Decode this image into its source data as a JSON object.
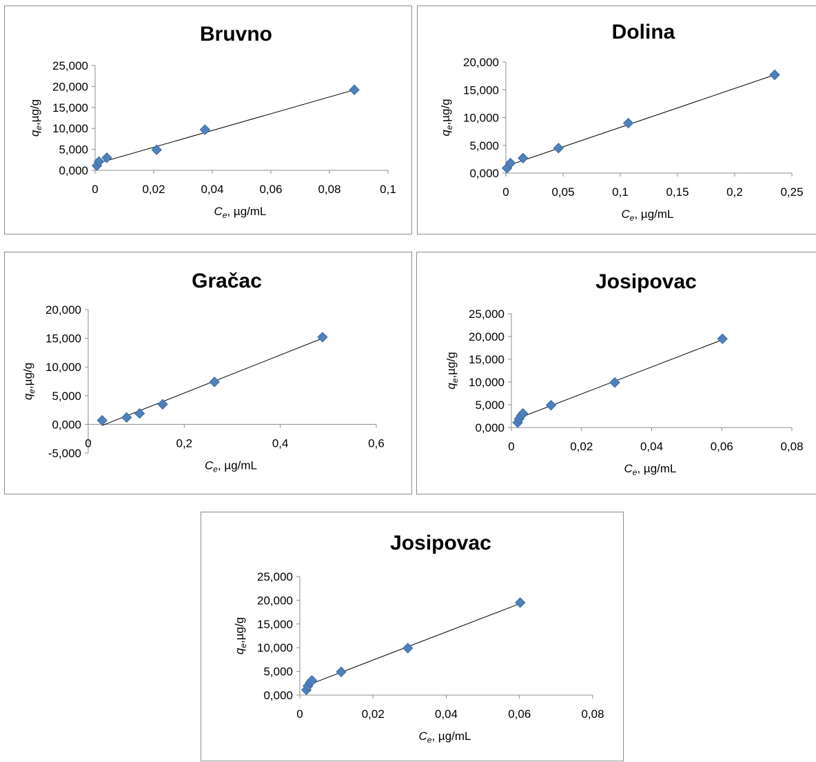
{
  "colors": {
    "marker": "#4f81bd",
    "marker_stroke": "#3a6ba5",
    "trendline": "#000000",
    "axis": "#8c8c8c"
  },
  "chart_data": [
    {
      "type": "scatter",
      "title": "Bruvno",
      "xlabel": {
        "symbol": "C",
        "sub": "e",
        "rest": ", µg/mL"
      },
      "ylabel": {
        "symbol": "q",
        "sub": "e",
        "rest": ",µg/g"
      },
      "xlim": [
        0,
        0.1
      ],
      "ylim": [
        0,
        25000
      ],
      "xticks": [
        0,
        0.02,
        0.04,
        0.06,
        0.08,
        0.1
      ],
      "xtick_labels": [
        "0",
        "0,02",
        "0,04",
        "0,06",
        "0,08",
        "0,1"
      ],
      "yticks": [
        0,
        5000,
        10000,
        15000,
        20000,
        25000
      ],
      "ytick_labels": [
        "0,000",
        "5,000",
        "10,000",
        "15,000",
        "20,000",
        "25,000"
      ],
      "grid": false,
      "points": [
        [
          0.0006,
          1100
        ],
        [
          0.0013,
          2100
        ],
        [
          0.004,
          3000
        ],
        [
          0.021,
          4900
        ],
        [
          0.0375,
          9700
        ],
        [
          0.0885,
          19200
        ]
      ],
      "trendline": [
        [
          0.001,
          1700
        ],
        [
          0.0885,
          19200
        ]
      ]
    },
    {
      "type": "scatter",
      "title": "Dolina",
      "xlabel": {
        "symbol": "C",
        "sub": "e",
        "rest": ", µg/mL"
      },
      "ylabel": {
        "symbol": "q",
        "sub": "e",
        "rest": ",µg/g"
      },
      "xlim": [
        0,
        0.25
      ],
      "ylim": [
        0,
        20000
      ],
      "xticks": [
        0,
        0.05,
        0.1,
        0.15,
        0.2,
        0.25
      ],
      "xtick_labels": [
        "0",
        "0,05",
        "0,1",
        "0,15",
        "0,2",
        "0,25"
      ],
      "yticks": [
        0,
        5000,
        10000,
        15000,
        20000
      ],
      "ytick_labels": [
        "0,000",
        "5,000",
        "10,000",
        "15,000",
        "20,000"
      ],
      "grid": false,
      "points": [
        [
          0.001,
          900
        ],
        [
          0.004,
          1800
        ],
        [
          0.015,
          2700
        ],
        [
          0.046,
          4500
        ],
        [
          0.107,
          9000
        ],
        [
          0.235,
          17700
        ]
      ],
      "trendline": [
        [
          0.001,
          1300
        ],
        [
          0.235,
          17700
        ]
      ]
    },
    {
      "type": "scatter",
      "title": "Gračac",
      "xlabel": {
        "symbol": "C",
        "sub": "e",
        "rest": ", µg/mL"
      },
      "ylabel": {
        "symbol": "q",
        "sub": "e",
        "rest": ",µg/g"
      },
      "xlim": [
        0,
        0.6
      ],
      "ylim": [
        -5000,
        20000
      ],
      "xticks": [
        0,
        0.2,
        0.4,
        0.6
      ],
      "xtick_labels": [
        "0",
        "0,2",
        "0,4",
        "0,6"
      ],
      "yticks": [
        -5000,
        0,
        5000,
        10000,
        15000,
        20000
      ],
      "ytick_labels": [
        "-5,000",
        "0,000",
        "5,000",
        "10,000",
        "15,000",
        "20,000"
      ],
      "grid": false,
      "points": [
        [
          0.029,
          700
        ],
        [
          0.08,
          1200
        ],
        [
          0.107,
          1900
        ],
        [
          0.155,
          3500
        ],
        [
          0.263,
          7400
        ],
        [
          0.488,
          15200
        ]
      ],
      "trendline": [
        [
          0.029,
          -200
        ],
        [
          0.488,
          15000
        ]
      ]
    },
    {
      "type": "scatter",
      "title": "Josipovac",
      "xlabel": {
        "symbol": "C",
        "sub": "e",
        "rest": ", µg/mL"
      },
      "ylabel": {
        "symbol": "q",
        "sub": "e",
        "rest": ",µg/g"
      },
      "xlim": [
        0,
        0.08
      ],
      "ylim": [
        0,
        25000
      ],
      "xticks": [
        0,
        0.02,
        0.04,
        0.06,
        0.08
      ],
      "xtick_labels": [
        "0",
        "0,02",
        "0,04",
        "0,06",
        "0,08"
      ],
      "yticks": [
        0,
        5000,
        10000,
        15000,
        20000,
        25000
      ],
      "ytick_labels": [
        "0,000",
        "5,000",
        "10,000",
        "15,000",
        "20,000",
        "25,000"
      ],
      "grid": false,
      "points": [
        [
          0.0018,
          1100
        ],
        [
          0.0022,
          1900
        ],
        [
          0.0028,
          2600
        ],
        [
          0.0033,
          3100
        ],
        [
          0.0113,
          4900
        ],
        [
          0.0295,
          9900
        ],
        [
          0.0602,
          19500
        ]
      ],
      "trendline": [
        [
          0.0015,
          1900
        ],
        [
          0.0602,
          19300
        ]
      ]
    },
    {
      "type": "scatter",
      "title": "Josipovac",
      "xlabel": {
        "symbol": "C",
        "sub": "e",
        "rest": ", µg/mL"
      },
      "ylabel": {
        "symbol": "q",
        "sub": "e",
        "rest": ",µg/g"
      },
      "xlim": [
        0,
        0.08
      ],
      "ylim": [
        0,
        25000
      ],
      "xticks": [
        0,
        0.02,
        0.04,
        0.06,
        0.08
      ],
      "xtick_labels": [
        "0",
        "0,02",
        "0,04",
        "0,06",
        "0,08"
      ],
      "yticks": [
        0,
        5000,
        10000,
        15000,
        20000,
        25000
      ],
      "ytick_labels": [
        "0,000",
        "5,000",
        "10,000",
        "15,000",
        "20,000",
        "25,000"
      ],
      "grid": false,
      "points": [
        [
          0.0018,
          1100
        ],
        [
          0.0022,
          1900
        ],
        [
          0.0028,
          2600
        ],
        [
          0.0033,
          3100
        ],
        [
          0.0113,
          4900
        ],
        [
          0.0295,
          9900
        ],
        [
          0.0602,
          19500
        ]
      ],
      "trendline": [
        [
          0.0015,
          1900
        ],
        [
          0.0602,
          19300
        ]
      ]
    }
  ]
}
